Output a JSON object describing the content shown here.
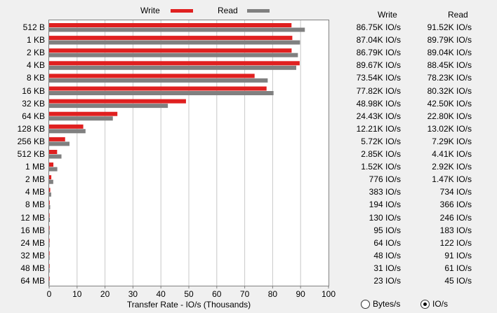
{
  "legend": {
    "write_label": "Write",
    "read_label": "Read"
  },
  "columns": {
    "write_header": "Write",
    "read_header": "Read"
  },
  "colors": {
    "write": "#e02020",
    "read": "#808080",
    "grid": "#c8c8c8"
  },
  "chart_data": {
    "type": "bar",
    "orientation": "horizontal",
    "categories": [
      "512 B",
      "1 KB",
      "2 KB",
      "4 KB",
      "8 KB",
      "16 KB",
      "32 KB",
      "64 KB",
      "128 KB",
      "256 KB",
      "512 KB",
      "1 MB",
      "2 MB",
      "4 MB",
      "8 MB",
      "12 MB",
      "16 MB",
      "24 MB",
      "32 MB",
      "48 MB",
      "64 MB"
    ],
    "series": [
      {
        "name": "Write",
        "values": [
          86.75,
          87.04,
          86.79,
          89.67,
          73.54,
          77.82,
          48.98,
          24.43,
          12.21,
          5.72,
          2.85,
          1.52,
          0.776,
          0.383,
          0.194,
          0.13,
          0.095,
          0.064,
          0.048,
          0.031,
          0.023
        ]
      },
      {
        "name": "Read",
        "values": [
          91.52,
          89.79,
          89.04,
          88.45,
          78.23,
          80.32,
          42.5,
          22.8,
          13.02,
          7.29,
          4.41,
          2.92,
          1.47,
          0.734,
          0.366,
          0.246,
          0.183,
          0.122,
          0.091,
          0.061,
          0.045
        ]
      }
    ],
    "xlabel": "Transfer Rate - IO/s (Thousands)",
    "xlim": [
      0,
      100
    ],
    "xticks": [
      "0",
      "10",
      "20",
      "30",
      "40",
      "50",
      "60",
      "70",
      "80",
      "90",
      "100"
    ],
    "grid": true,
    "legend_position": "top"
  },
  "write_values": [
    "86.75K IO/s",
    "87.04K IO/s",
    "86.79K IO/s",
    "89.67K IO/s",
    "73.54K IO/s",
    "77.82K IO/s",
    "48.98K IO/s",
    "24.43K IO/s",
    "12.21K IO/s",
    "5.72K IO/s",
    "2.85K IO/s",
    "1.52K IO/s",
    "776 IO/s",
    "383 IO/s",
    "194 IO/s",
    "130 IO/s",
    "95 IO/s",
    "64 IO/s",
    "48 IO/s",
    "31 IO/s",
    "23 IO/s"
  ],
  "read_values": [
    "91.52K IO/s",
    "89.79K IO/s",
    "89.04K IO/s",
    "88.45K IO/s",
    "78.23K IO/s",
    "80.32K IO/s",
    "42.50K IO/s",
    "22.80K IO/s",
    "13.02K IO/s",
    "7.29K IO/s",
    "4.41K IO/s",
    "2.92K IO/s",
    "1.47K IO/s",
    "734 IO/s",
    "366 IO/s",
    "246 IO/s",
    "183 IO/s",
    "122 IO/s",
    "91 IO/s",
    "61 IO/s",
    "45 IO/s"
  ],
  "units": {
    "options": [
      {
        "label": "Bytes/s",
        "selected": false
      },
      {
        "label": "IO/s",
        "selected": true
      }
    ]
  }
}
